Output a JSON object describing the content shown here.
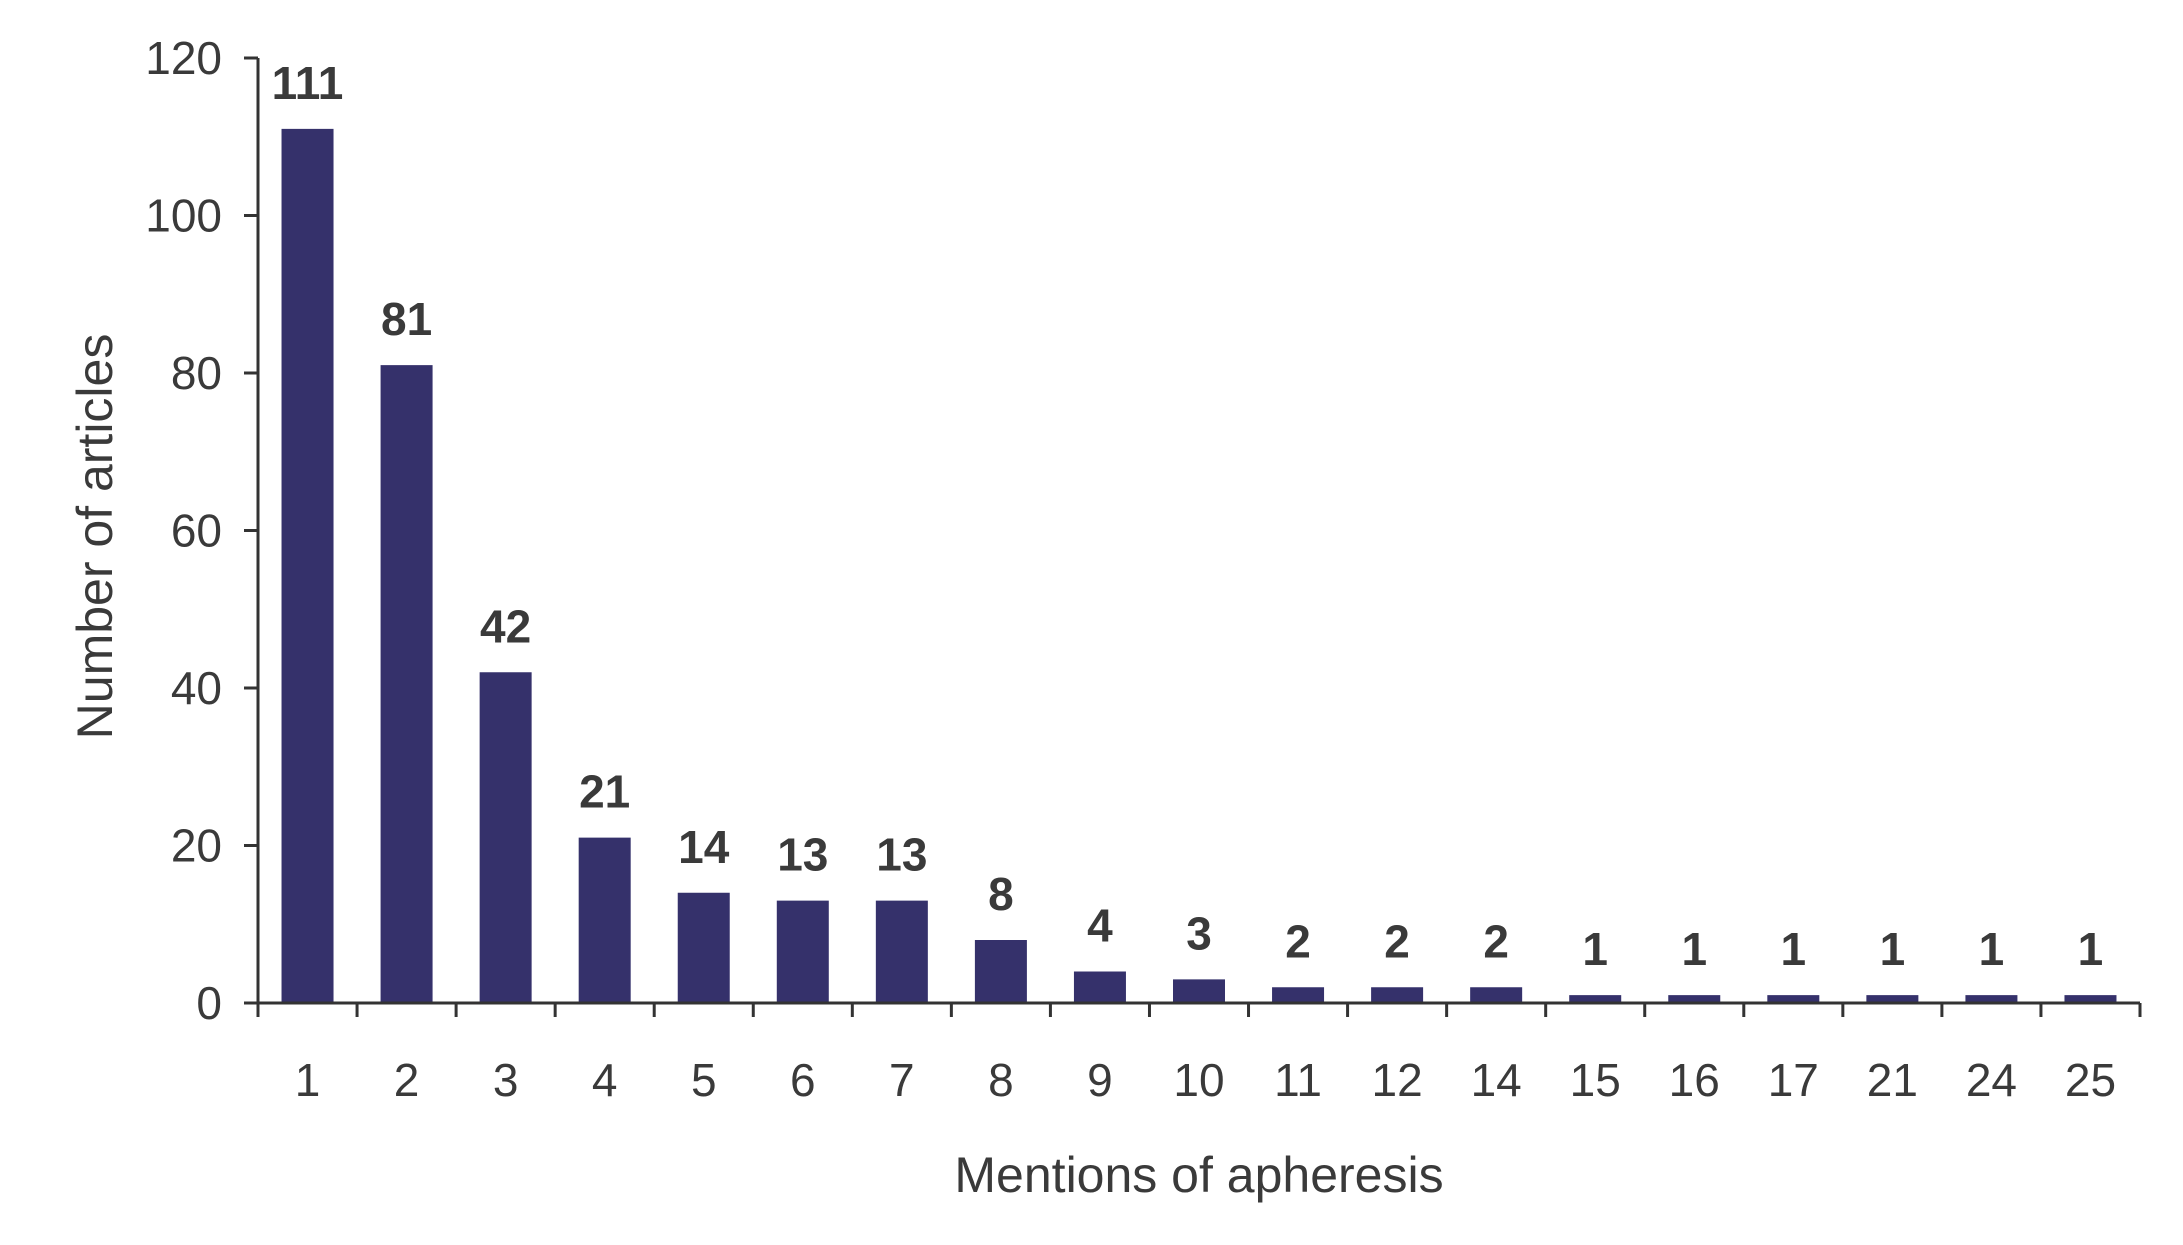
{
  "chart_data": {
    "type": "bar",
    "categories": [
      "1",
      "2",
      "3",
      "4",
      "5",
      "6",
      "7",
      "8",
      "9",
      "10",
      "11",
      "12",
      "14",
      "15",
      "16",
      "17",
      "21",
      "24",
      "25"
    ],
    "values": [
      111,
      81,
      42,
      21,
      14,
      13,
      13,
      8,
      4,
      3,
      2,
      2,
      2,
      1,
      1,
      1,
      1,
      1,
      1
    ],
    "data_labels": [
      "111",
      "81",
      "42",
      "21",
      "14",
      "13",
      "13",
      "8",
      "4",
      "3",
      "2",
      "2",
      "2",
      "1",
      "1",
      "1",
      "1",
      "1",
      "1"
    ],
    "xlabel": "Mentions of apheresis",
    "ylabel": "Number of articles",
    "ylim": [
      0,
      120
    ],
    "yticks": [
      "0",
      "20",
      "40",
      "60",
      "80",
      "100",
      "120"
    ],
    "grid": false,
    "legend": "none",
    "bar_color": "#35316b"
  }
}
